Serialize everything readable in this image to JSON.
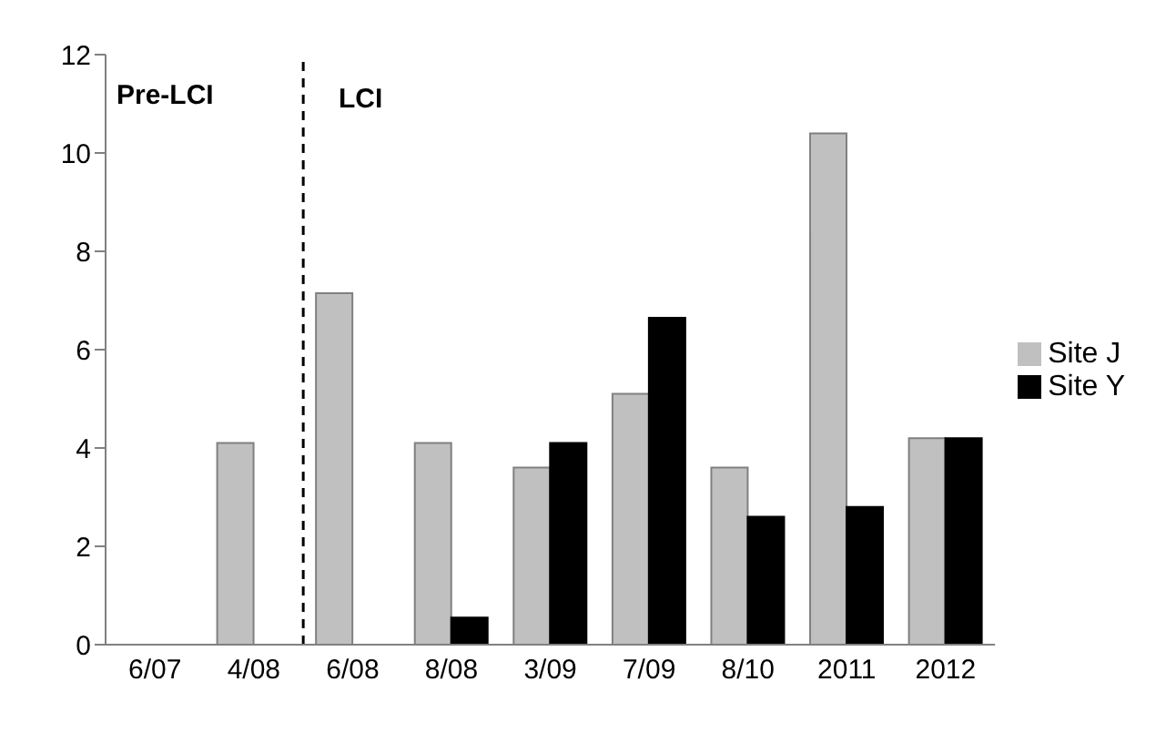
{
  "chart_data": {
    "type": "bar",
    "categories": [
      "6/07",
      "4/08",
      "6/08",
      "8/08",
      "3/09",
      "7/09",
      "8/10",
      "2011",
      "2012"
    ],
    "series": [
      {
        "name": "Site J",
        "color": "#c0c0c0",
        "values": [
          null,
          4.1,
          7.15,
          4.1,
          3.6,
          5.1,
          3.6,
          10.4,
          4.2
        ]
      },
      {
        "name": "Site Y",
        "color": "#000000",
        "values": [
          null,
          null,
          null,
          0.55,
          4.1,
          6.65,
          2.6,
          2.8,
          4.2
        ]
      }
    ],
    "ylim": [
      0,
      12
    ],
    "yticks": [
      0,
      2,
      4,
      6,
      8,
      10,
      12
    ],
    "grid": false,
    "legend": "right",
    "annotations": [
      "Pre-LCI",
      "LCI"
    ]
  }
}
